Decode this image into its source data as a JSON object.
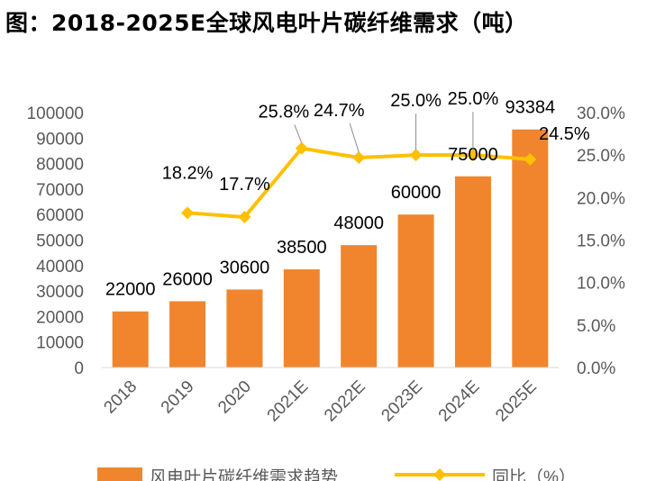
{
  "title": "图：2018-2025E全球风电叶片碳纤维需求（吨）",
  "colors": {
    "bar": "#F0852D",
    "line": "#FFC000",
    "axis_text": "#595959",
    "leader": "#8c8c8c"
  },
  "chart_data": {
    "type": "bar",
    "categories": [
      "2018",
      "2019",
      "2020",
      "2021E",
      "2022E",
      "2023E",
      "2024E",
      "2025E"
    ],
    "series": [
      {
        "name": "风电叶片碳纤维需求趋势",
        "type": "bar",
        "axis": "left",
        "values": [
          22000,
          26000,
          30600,
          38500,
          48000,
          60000,
          75000,
          93384
        ],
        "labels": [
          "22000",
          "26000",
          "30600",
          "38500",
          "48000",
          "60000",
          "75000",
          "93384"
        ]
      },
      {
        "name": "同比（%）",
        "type": "line",
        "axis": "right",
        "values": [
          null,
          18.2,
          17.7,
          25.8,
          24.7,
          25.0,
          25.0,
          24.5
        ],
        "labels": [
          "",
          "18.2%",
          "17.7%",
          "25.8%",
          "24.7%",
          "25.0%",
          "25.0%",
          "24.5%"
        ]
      }
    ],
    "y_left": {
      "min": 0,
      "max": 100000,
      "ticks": [
        "0",
        "10000",
        "20000",
        "30000",
        "40000",
        "50000",
        "60000",
        "70000",
        "80000",
        "90000",
        "100000"
      ]
    },
    "y_right": {
      "min": 0,
      "max": 30,
      "ticks": [
        "0.0%",
        "5.0%",
        "10.0%",
        "15.0%",
        "20.0%",
        "25.0%",
        "30.0%"
      ]
    },
    "legend_position": "bottom",
    "grid": false
  }
}
